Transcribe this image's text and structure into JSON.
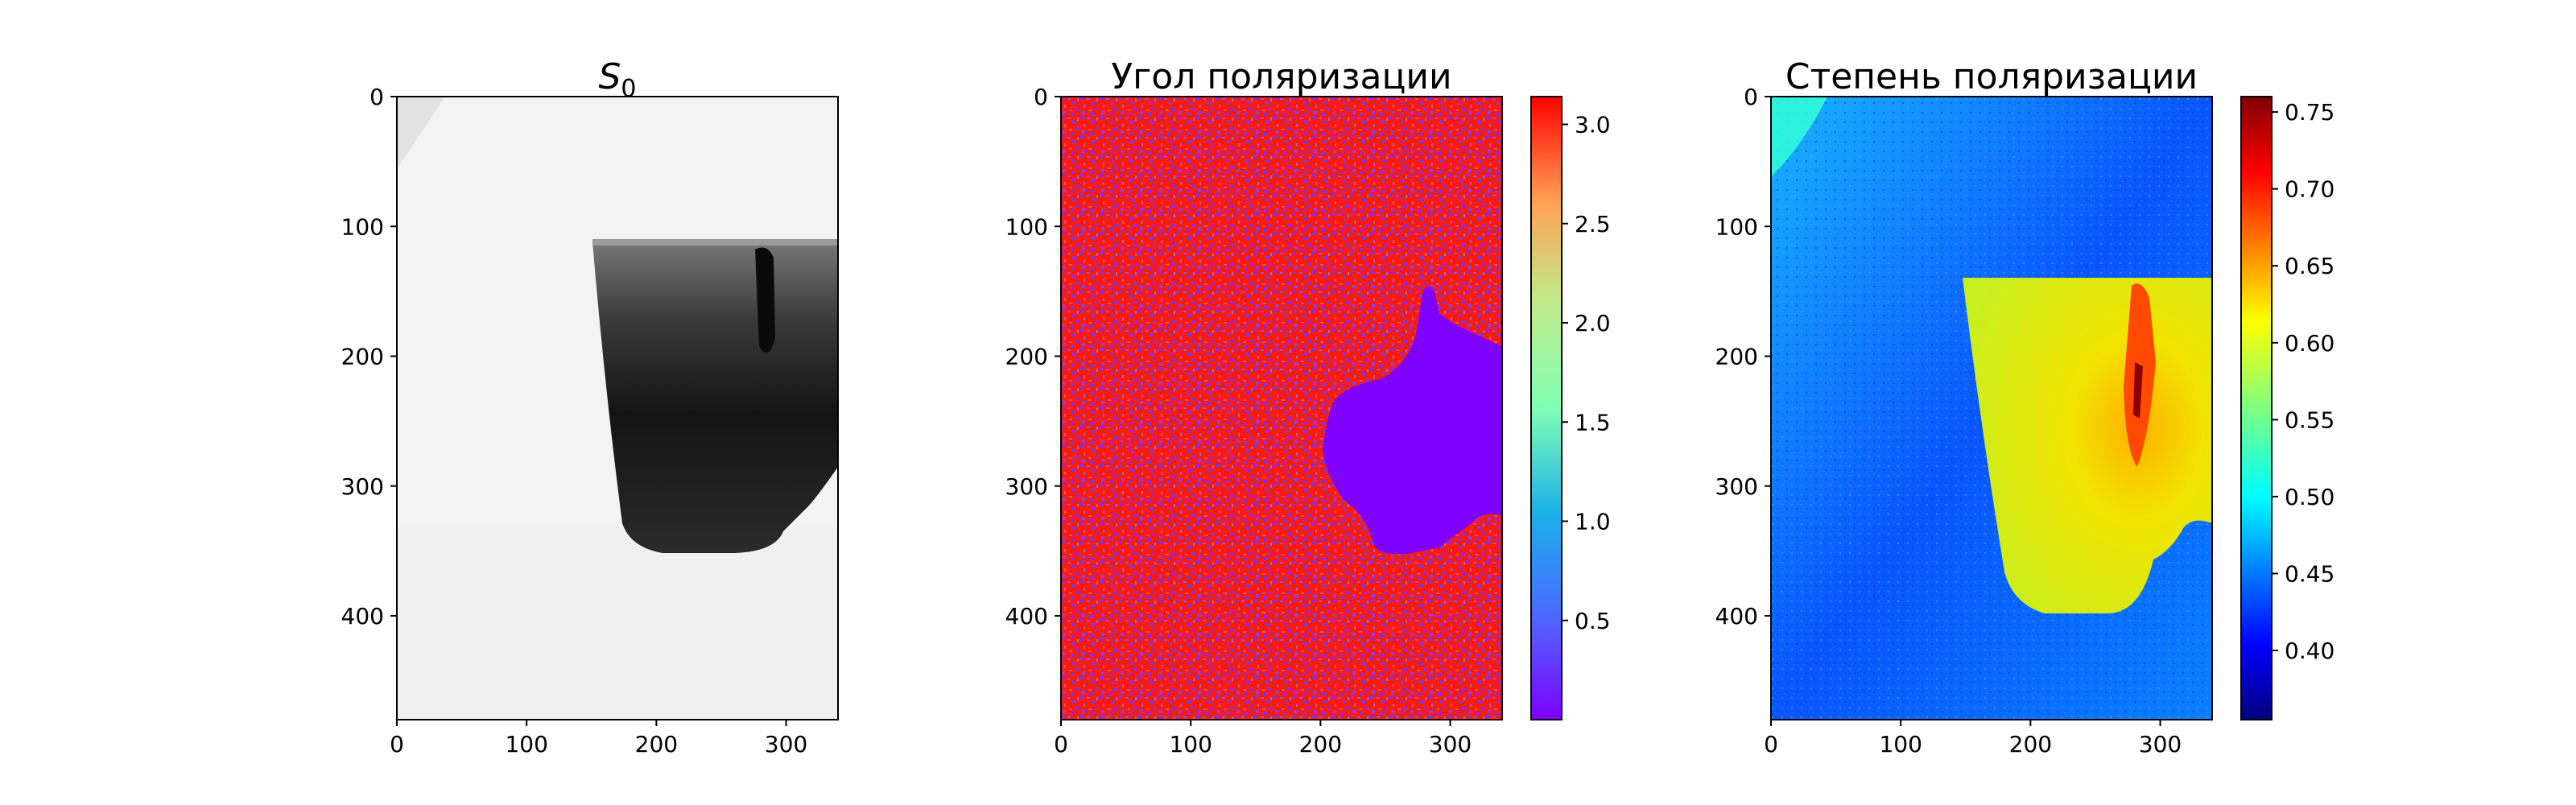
{
  "chart_data": [
    {
      "type": "heatmap",
      "title": "S",
      "title_subscript": "0",
      "colormap": "gray",
      "x_ticks": [
        "0",
        "100",
        "200",
        "300"
      ],
      "y_ticks": [
        "0",
        "100",
        "200",
        "300",
        "400"
      ],
      "xlim": [
        0,
        340
      ],
      "ylim": [
        480,
        0
      ]
    },
    {
      "type": "heatmap",
      "title": "Угол поляризации",
      "colormap": "rainbow",
      "x_ticks": [
        "0",
        "100",
        "200",
        "300"
      ],
      "y_ticks": [
        "0",
        "100",
        "200",
        "300",
        "400"
      ],
      "xlim": [
        0,
        340
      ],
      "ylim": [
        480,
        0
      ],
      "colorbar": {
        "range": [
          0.0,
          3.14
        ],
        "ticks": [
          "0.5",
          "1.0",
          "1.5",
          "2.0",
          "2.5",
          "3.0"
        ]
      }
    },
    {
      "type": "heatmap",
      "title": "Степень поляризации",
      "colormap": "jet",
      "x_ticks": [
        "0",
        "100",
        "200",
        "300"
      ],
      "y_ticks": [
        "0",
        "100",
        "200",
        "300",
        "400"
      ],
      "xlim": [
        0,
        340
      ],
      "ylim": [
        480,
        0
      ],
      "colorbar": {
        "range": [
          0.355,
          0.76
        ],
        "ticks": [
          "0.40",
          "0.45",
          "0.50",
          "0.55",
          "0.60",
          "0.65",
          "0.70",
          "0.75"
        ]
      }
    }
  ]
}
